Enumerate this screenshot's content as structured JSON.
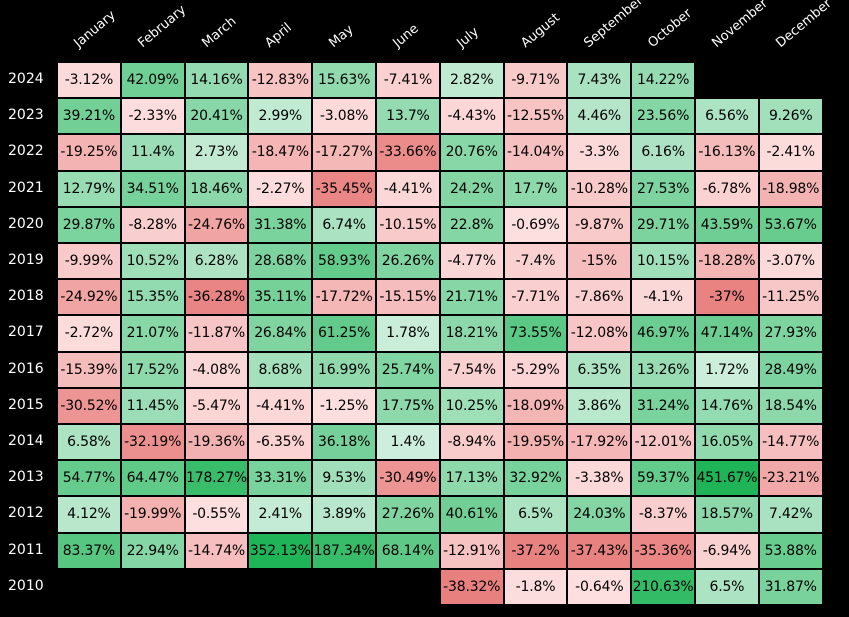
{
  "chart_data": {
    "type": "heatmap",
    "title": "",
    "xlabel": "",
    "ylabel": "",
    "months": [
      "January",
      "February",
      "March",
      "April",
      "May",
      "June",
      "July",
      "August",
      "September",
      "October",
      "November",
      "December"
    ],
    "years": [
      "2024",
      "2023",
      "2022",
      "2021",
      "2020",
      "2019",
      "2018",
      "2017",
      "2016",
      "2015",
      "2014",
      "2013",
      "2012",
      "2011",
      "2010"
    ],
    "values": [
      [
        -3.12,
        42.09,
        14.16,
        -12.83,
        15.63,
        -7.41,
        2.82,
        -9.71,
        7.43,
        14.22,
        null,
        null
      ],
      [
        39.21,
        -2.33,
        20.41,
        2.99,
        -3.08,
        13.7,
        -4.43,
        -12.55,
        4.46,
        23.56,
        6.56,
        9.26
      ],
      [
        -19.25,
        11.4,
        2.73,
        -18.47,
        -17.27,
        -33.66,
        20.76,
        -14.04,
        -3.3,
        6.16,
        -16.13,
        -2.41
      ],
      [
        12.79,
        34.51,
        18.46,
        -2.27,
        -35.45,
        -4.41,
        24.2,
        17.7,
        -10.28,
        27.53,
        -6.78,
        -18.98
      ],
      [
        29.87,
        -8.28,
        -24.76,
        31.38,
        6.74,
        -10.15,
        22.8,
        -0.69,
        -9.87,
        29.71,
        43.59,
        53.67
      ],
      [
        -9.99,
        10.52,
        6.28,
        28.68,
        58.93,
        26.26,
        -4.77,
        -7.4,
        -15,
        10.15,
        -18.28,
        -3.07
      ],
      [
        -24.92,
        15.35,
        -36.28,
        35.11,
        -17.72,
        -15.15,
        21.71,
        -7.71,
        -7.86,
        -4.1,
        -37,
        -11.25
      ],
      [
        -2.72,
        21.07,
        -11.87,
        26.84,
        61.25,
        1.78,
        18.21,
        73.55,
        -12.08,
        46.97,
        47.14,
        27.93
      ],
      [
        -15.39,
        17.52,
        -4.08,
        8.68,
        16.99,
        25.74,
        -7.54,
        -5.29,
        6.35,
        13.26,
        1.72,
        28.49
      ],
      [
        -30.52,
        11.45,
        -5.47,
        -4.41,
        -1.25,
        17.75,
        10.25,
        -18.09,
        3.86,
        31.24,
        14.76,
        18.54
      ],
      [
        6.58,
        -32.19,
        -19.36,
        -6.35,
        36.18,
        1.4,
        -8.94,
        -19.95,
        -17.92,
        -12.01,
        16.05,
        -14.77
      ],
      [
        54.77,
        64.47,
        178.27,
        33.31,
        9.53,
        -30.49,
        17.13,
        32.92,
        -3.38,
        59.37,
        451.67,
        -23.21
      ],
      [
        4.12,
        -19.99,
        -0.55,
        2.41,
        3.89,
        27.26,
        40.61,
        6.5,
        24.03,
        -8.37,
        18.57,
        7.42
      ],
      [
        83.37,
        22.94,
        -14.74,
        352.13,
        187.34,
        68.14,
        -12.91,
        -37.2,
        -37.43,
        -35.36,
        -6.94,
        53.88
      ],
      [
        null,
        null,
        null,
        null,
        null,
        null,
        -38.32,
        -1.8,
        -0.64,
        210.63,
        6.5,
        31.87
      ]
    ],
    "value_suffix": "%",
    "colors": {
      "negative_light": "#fde0e0",
      "negative_strong": "#e8807f",
      "positive_light": "#e2f5ec",
      "positive_strong": "#1fb457",
      "background": "#000000",
      "text": "#000000"
    }
  }
}
